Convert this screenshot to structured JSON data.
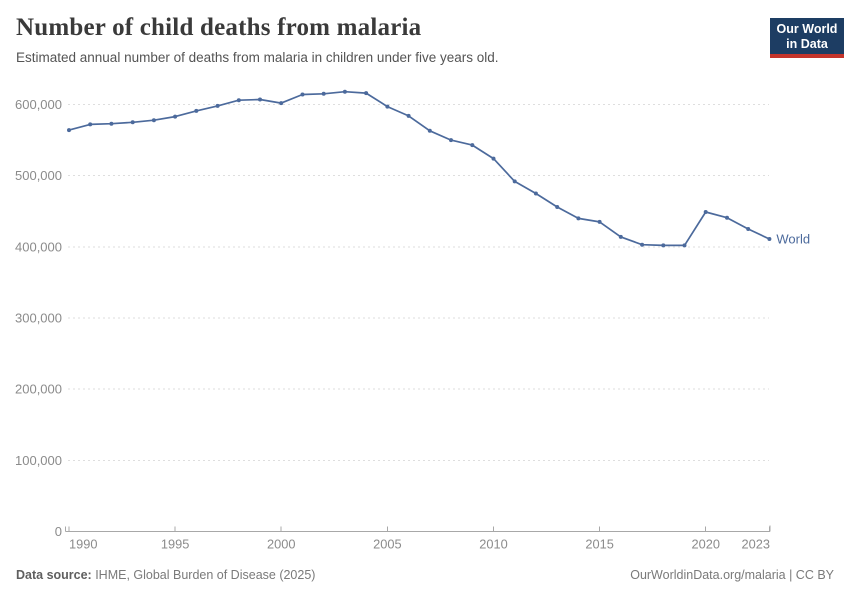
{
  "header": {
    "title": "Number of child deaths from malaria",
    "subtitle": "Estimated annual number of deaths from malaria in children under five years old.",
    "logo": {
      "line1": "Our World",
      "line2": "in Data",
      "bg_color": "#1d3d63",
      "accent_color": "#c4342b"
    }
  },
  "chart_data": {
    "type": "line",
    "title": "Number of child deaths from malaria",
    "xlabel": "",
    "ylabel": "",
    "xlim": [
      1990,
      2023
    ],
    "ylim": [
      0,
      600000
    ],
    "grid": "horizontal-dashed",
    "legend_position": "end-of-line-label",
    "x_ticks": [
      {
        "value": 1990,
        "label": "1990"
      },
      {
        "value": 1995,
        "label": "1995"
      },
      {
        "value": 2000,
        "label": "2000"
      },
      {
        "value": 2005,
        "label": "2005"
      },
      {
        "value": 2010,
        "label": "2010"
      },
      {
        "value": 2015,
        "label": "2015"
      },
      {
        "value": 2020,
        "label": "2020"
      },
      {
        "value": 2023,
        "label": "2023"
      }
    ],
    "y_ticks": [
      {
        "value": 0,
        "label": "0"
      },
      {
        "value": 100000,
        "label": "100,000"
      },
      {
        "value": 200000,
        "label": "200,000"
      },
      {
        "value": 300000,
        "label": "300,000"
      },
      {
        "value": 400000,
        "label": "400,000"
      },
      {
        "value": 500000,
        "label": "500,000"
      },
      {
        "value": 600000,
        "label": "600,000"
      }
    ],
    "series": [
      {
        "name": "World",
        "color": "#4c6a9c",
        "x": [
          1990,
          1991,
          1992,
          1993,
          1994,
          1995,
          1996,
          1997,
          1998,
          1999,
          2000,
          2001,
          2002,
          2003,
          2004,
          2005,
          2006,
          2007,
          2008,
          2009,
          2010,
          2011,
          2012,
          2013,
          2014,
          2015,
          2016,
          2017,
          2018,
          2019,
          2020,
          2021,
          2022,
          2023
        ],
        "values": [
          564000,
          572000,
          573000,
          575000,
          578000,
          583000,
          591000,
          598000,
          606000,
          607000,
          602000,
          614000,
          615000,
          618000,
          616000,
          597000,
          584000,
          563000,
          550000,
          543000,
          524000,
          492000,
          475000,
          456000,
          440000,
          435000,
          414000,
          403000,
          402000,
          402000,
          449000,
          441000,
          425000,
          411000
        ]
      }
    ],
    "colors": {
      "gridline": "#dedede",
      "axis": "#a8a8a8",
      "tick_label": "#8b8b8b"
    }
  },
  "footer": {
    "source_label": "Data source:",
    "source_text": " IHME, Global Burden of Disease (2025)",
    "credit": "OurWorldinData.org/malaria | CC BY"
  }
}
